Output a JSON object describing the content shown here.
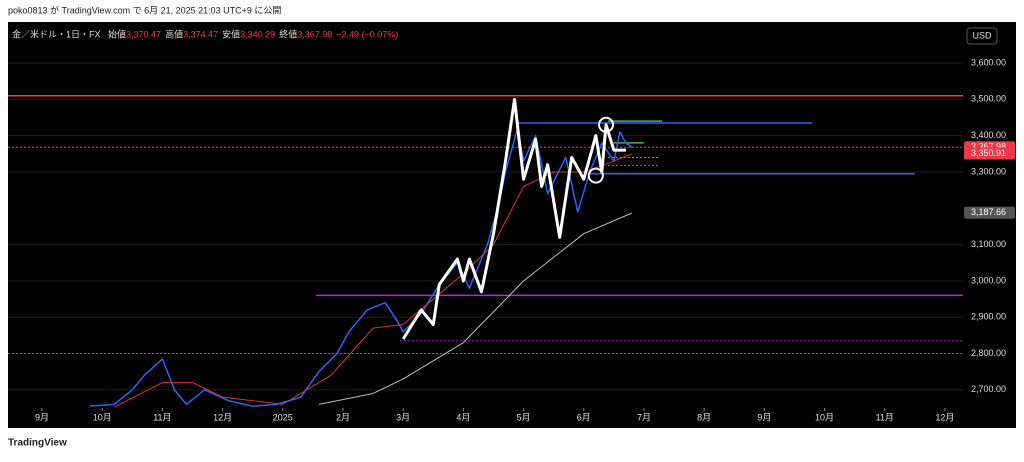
{
  "header": "poko0813 が TradingView.com で 6月 21, 2025 21:03 UTC+9 に公開",
  "footer": "TradingView",
  "chart_data": {
    "type": "line",
    "symbol": "金／米ドル・1日・FX",
    "ohlc": [
      {
        "label": "始値",
        "value": "3,370.47"
      },
      {
        "label": "高値",
        "value": "3,374.47"
      },
      {
        "label": "安値",
        "value": "3,340.29"
      },
      {
        "label": "終値",
        "value": "3,367.98"
      }
    ],
    "change": "−2.49 (−0.07%)",
    "currency": "USD",
    "xlim": [
      -0.565,
      15.3
    ],
    "xticks": [
      {
        "value": 0,
        "label": "9月"
      },
      {
        "value": 1,
        "label": "10月"
      },
      {
        "value": 2,
        "label": "11月"
      },
      {
        "value": 3,
        "label": "12月"
      },
      {
        "value": 4,
        "label": "2025"
      },
      {
        "value": 5,
        "label": "2月"
      },
      {
        "value": 6,
        "label": "3月"
      },
      {
        "value": 7,
        "label": "4月"
      },
      {
        "value": 8,
        "label": "5月"
      },
      {
        "value": 9,
        "label": "6月"
      },
      {
        "value": 10,
        "label": "7月"
      },
      {
        "value": 11,
        "label": "8月"
      },
      {
        "value": 12,
        "label": "9月"
      },
      {
        "value": 13,
        "label": "10月"
      },
      {
        "value": 14,
        "label": "11月"
      },
      {
        "value": 15,
        "label": "12月"
      }
    ],
    "ylim": [
      2650,
      3713
    ],
    "yticks": [
      {
        "value": 2700,
        "label": "2,700.00"
      },
      {
        "value": 2800,
        "label": "2,800.00"
      },
      {
        "value": 2900,
        "label": "2,900.00"
      },
      {
        "value": 3000,
        "label": "3,000.00"
      },
      {
        "value": 3100,
        "label": "3,100.00"
      },
      {
        "value": 3300,
        "label": "3,300.00"
      },
      {
        "value": 3400,
        "label": "3,400.00"
      },
      {
        "value": 3500,
        "label": "3,500.00"
      },
      {
        "value": 3600,
        "label": "3,600.00"
      }
    ],
    "series": [
      {
        "color": "#2962ff",
        "width": 1.5,
        "x": [
          0.8,
          1.2,
          1.5,
          1.7,
          2.0,
          2.2,
          2.4,
          2.7,
          3.1,
          3.5,
          3.9,
          4.3,
          4.6,
          4.9,
          5.1,
          5.4,
          5.7,
          5.9,
          6.0,
          6.3,
          6.6,
          6.9,
          7.1,
          7.4,
          7.6,
          7.7,
          7.9,
          8.0,
          8.2,
          8.4,
          8.7,
          8.9,
          9.1,
          9.3,
          9.5,
          9.6,
          9.7,
          9.8
        ],
        "values": [
          2655,
          2660,
          2700,
          2740,
          2785,
          2700,
          2660,
          2700,
          2670,
          2655,
          2660,
          2680,
          2750,
          2800,
          2860,
          2920,
          2940,
          2890,
          2860,
          2910,
          2990,
          3050,
          2980,
          3100,
          3220,
          3300,
          3420,
          3330,
          3400,
          3240,
          3340,
          3190,
          3300,
          3380,
          3330,
          3410,
          3380,
          3368
        ]
      },
      {
        "color": "#e03030",
        "width": 1,
        "x": [
          1.2,
          2.0,
          2.5,
          3.0,
          4.0,
          4.8,
          5.5,
          6.0,
          6.5,
          7.0,
          7.5,
          8.0,
          8.5,
          9.0,
          9.5,
          9.8
        ],
        "values": [
          2652,
          2720,
          2720,
          2680,
          2660,
          2740,
          2870,
          2880,
          2950,
          3020,
          3100,
          3260,
          3300,
          3300,
          3330,
          3350
        ]
      },
      {
        "color": "#bbbbbb",
        "width": 1,
        "x": [
          4.6,
          5.5,
          6.0,
          7.0,
          8.0,
          9.0,
          9.8
        ],
        "values": [
          2660,
          2690,
          2730,
          2830,
          3000,
          3130,
          3187
        ]
      },
      {
        "color": "#ffffff",
        "width": 3,
        "x": [
          6.0,
          6.3,
          6.5,
          6.6,
          6.9,
          7.0,
          7.1,
          7.3,
          7.5,
          7.7,
          7.85,
          8.0,
          8.2,
          8.3,
          8.4,
          8.6,
          8.8,
          9.0,
          9.2,
          9.3,
          9.37,
          9.5,
          9.7
        ],
        "values": [
          2840,
          2920,
          2880,
          2990,
          3060,
          3000,
          3060,
          2970,
          3130,
          3330,
          3500,
          3280,
          3390,
          3260,
          3320,
          3120,
          3340,
          3280,
          3400,
          3300,
          3430,
          3360,
          3360
        ]
      }
    ],
    "markers": [
      {
        "x": 9.2,
        "value": 3290
      },
      {
        "x": 9.37,
        "value": 3430
      }
    ],
    "levels": [
      {
        "value": 3510,
        "from": -0.565,
        "to": 15.3,
        "color": "#f23645",
        "dash": false
      },
      {
        "value": 3435,
        "from": 7.87,
        "to": 12.79,
        "color": "#2962ff",
        "dash": false
      },
      {
        "value": 3295,
        "from": 9.1,
        "to": 14.5,
        "color": "#2962ff",
        "dash": false
      },
      {
        "value": 2960,
        "from": 4.55,
        "to": 15.3,
        "color": "#c020e0",
        "dash": false
      },
      {
        "value": 2835,
        "from": 5.95,
        "to": 15.3,
        "color": "#c020e0",
        "dash": true
      },
      {
        "value": 2800,
        "from": -0.565,
        "to": 15.3,
        "color": "#f23645",
        "dash": true
      },
      {
        "value": 3368,
        "from": -0.565,
        "to": 15.3,
        "color": "#f23645",
        "dash": true
      },
      {
        "value": 3440,
        "from": 9.4,
        "to": 10.3,
        "color": "#4caf50",
        "dash": false
      },
      {
        "value": 3380,
        "from": 9.5,
        "to": 10.0,
        "color": "#4caf50",
        "dash": false
      },
      {
        "value": 3340,
        "from": 9.4,
        "to": 10.25,
        "color": "#4caf50",
        "dash": true
      },
      {
        "value": 3318,
        "from": 9.4,
        "to": 10.25,
        "color": "#4caf50",
        "dash": true
      }
    ],
    "price_labels": [
      {
        "value": 3367.98,
        "label": "3,367.98",
        "color": "#f23645"
      },
      {
        "value": 3350.91,
        "label": "3,350.91",
        "color": "#f23645"
      },
      {
        "value": 3187.66,
        "label": "3,187.66",
        "color": "#555555"
      }
    ]
  }
}
